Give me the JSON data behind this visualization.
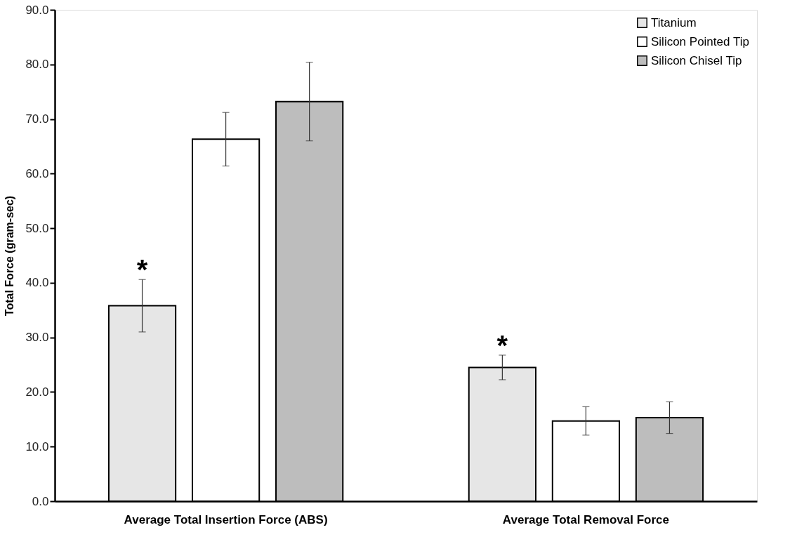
{
  "chart_data": {
    "type": "bar",
    "ylabel": "Total Force (gram-sec)",
    "categories": [
      "Average Total Insertion Force (ABS)",
      "Average Total Removal Force"
    ],
    "series": [
      {
        "name": "Titanium",
        "color": "#e6e6e6",
        "values": [
          35.8,
          24.5
        ],
        "errors": [
          4.8,
          2.25
        ]
      },
      {
        "name": "Silicon Pointed Tip",
        "color": "#ffffff",
        "values": [
          66.3,
          14.7
        ],
        "errors": [
          4.9,
          2.6
        ]
      },
      {
        "name": "Silicon Chisel Tip",
        "color": "#bdbdbd",
        "values": [
          73.2,
          15.3
        ],
        "errors": [
          7.2,
          2.9
        ]
      }
    ],
    "ylim": [
      0,
      90
    ],
    "yticks": [
      {
        "value": 0,
        "label": "0.0"
      },
      {
        "value": 10,
        "label": "10.0"
      },
      {
        "value": 20,
        "label": "20.0"
      },
      {
        "value": 30,
        "label": "30.0"
      },
      {
        "value": 40,
        "label": "40.0"
      },
      {
        "value": 50,
        "label": "50.0"
      },
      {
        "value": 60,
        "label": "60.0"
      },
      {
        "value": 70,
        "label": "70.0"
      },
      {
        "value": 80,
        "label": "80.0"
      },
      {
        "value": 90,
        "label": "90.0"
      }
    ],
    "annotations": [
      "*",
      "*"
    ],
    "legend": "top right",
    "grid": false
  }
}
